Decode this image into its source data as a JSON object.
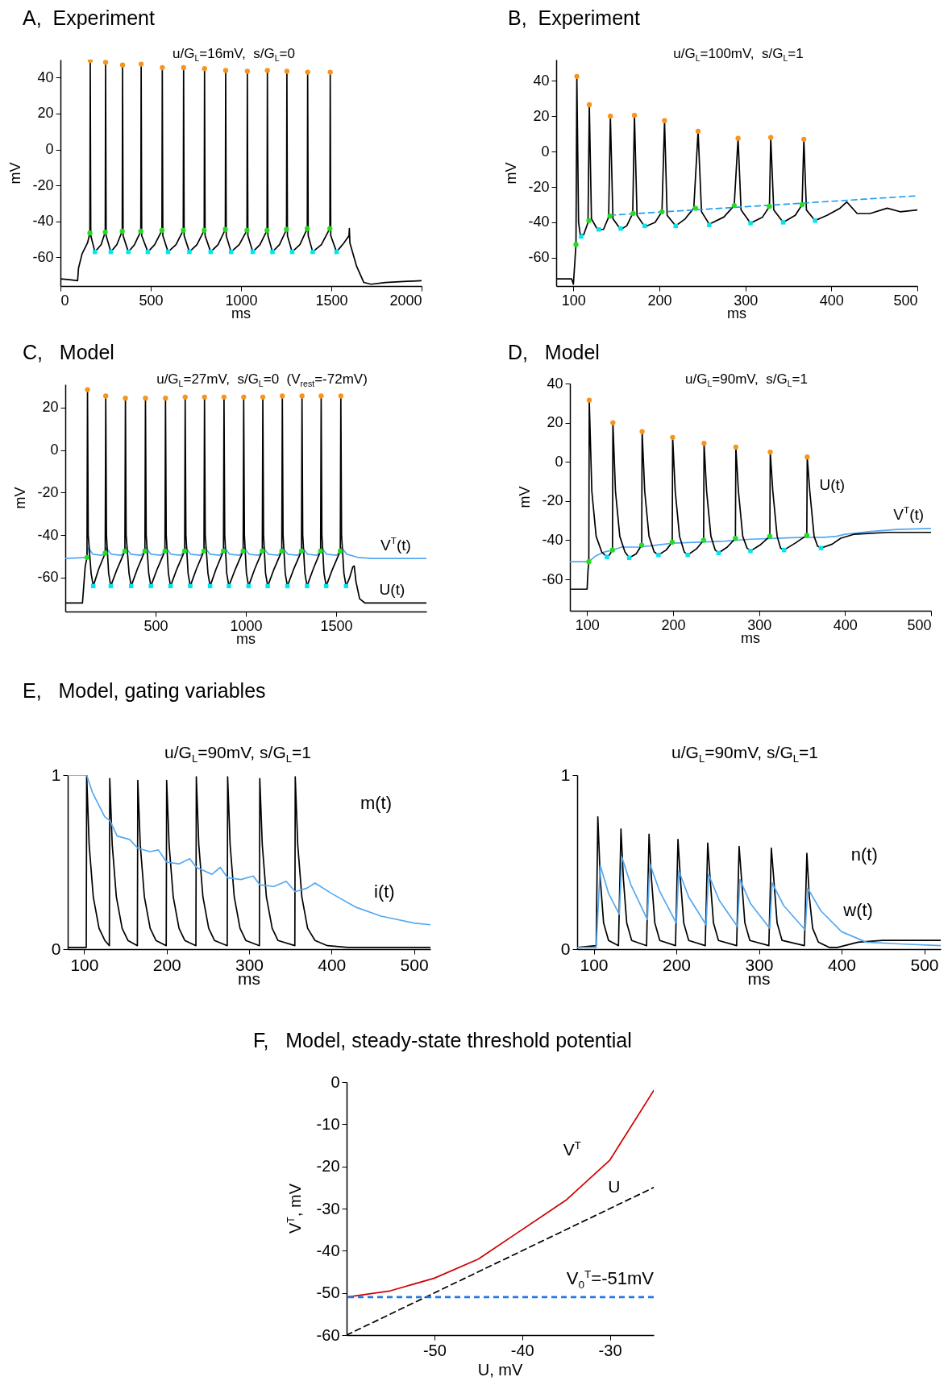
{
  "chart_data": [
    {
      "type": "line",
      "title": "A,  Experiment",
      "subtitle": "u/G$_{L}$=16mV,  s/G$_{L}$=0",
      "xlabel": "ms",
      "ylabel": "mV",
      "xlim": [
        0,
        2000
      ],
      "ylim": [
        -76,
        50
      ],
      "xticks": [
        0,
        500,
        1000,
        1500,
        2000
      ],
      "yticks": [
        -60,
        -40,
        -20,
        0,
        20,
        40
      ],
      "series": [
        {
          "type": "line",
          "color": "#000000",
          "x": [
            0,
            50,
            95,
            100,
            120,
            150,
            163,
            165,
            168,
            191,
            225,
            248,
            250,
            253,
            279,
            312,
            342,
            344,
            347,
            376,
            410,
            445,
            447,
            450,
            484,
            522,
            562,
            564,
            567,
            596,
            640,
            680,
            682,
            685,
            714,
            756,
            796,
            798,
            801,
            832,
            873,
            913,
            915,
            918,
            945,
            990,
            1033,
            1035,
            1038,
            1065,
            1105,
            1144,
            1146,
            1149,
            1174,
            1213,
            1252,
            1254,
            1257,
            1283,
            1326,
            1367,
            1369,
            1372,
            1397,
            1445,
            1492,
            1494,
            1497,
            1529,
            1570,
            1598,
            1600,
            1603,
            1640,
            1680,
            1720,
            1800,
            1900,
            2000
          ],
          "values": [
            -72,
            -72.5,
            -73,
            -66,
            -58,
            -52,
            -46.5,
            49.5,
            -48,
            -57,
            -53,
            -46,
            48.5,
            -48,
            -57,
            -53,
            -45.5,
            47,
            -48,
            -57,
            -53,
            -45.5,
            47.5,
            -48,
            -57,
            -53,
            -45,
            45.5,
            -48,
            -57,
            -53,
            -45,
            45.5,
            -48,
            -57,
            -53,
            -45,
            45,
            -48,
            -57,
            -53,
            -44.5,
            44,
            -48,
            -57,
            -53,
            -45,
            43.5,
            -48,
            -57,
            -53,
            -45,
            44,
            -48,
            -57,
            -53,
            -44.5,
            43.5,
            -48,
            -57,
            -53,
            -44,
            43,
            -48,
            -57,
            -53,
            -44,
            43,
            -48,
            -57,
            -52,
            -48,
            -44,
            -52,
            -65,
            -74,
            -75,
            -74,
            -73.5,
            -73
          ]
        },
        {
          "type": "scatter",
          "marker": "circle",
          "color": "#f7941d",
          "x": [
            165,
            250,
            344,
            447,
            564,
            682,
            798,
            915,
            1035,
            1146,
            1254,
            1369,
            1494
          ],
          "values": [
            49.5,
            48.5,
            47,
            47.5,
            45.5,
            45.5,
            45,
            44,
            43.5,
            44,
            43.5,
            43,
            43
          ]
        },
        {
          "type": "scatter",
          "marker": "circle",
          "color": "#22dd22",
          "x": [
            163,
            248,
            342,
            445,
            562,
            680,
            796,
            913,
            1033,
            1144,
            1252,
            1367,
            1492
          ],
          "values": [
            -46.5,
            -46,
            -45.5,
            -45.5,
            -45,
            -45,
            -45,
            -44.5,
            -45,
            -45,
            -44.5,
            -44,
            -44
          ]
        },
        {
          "type": "scatter",
          "marker": "square",
          "color": "#00e5ee",
          "x": [
            191,
            279,
            376,
            484,
            596,
            714,
            832,
            945,
            1065,
            1174,
            1283,
            1397,
            1529
          ],
          "values": [
            -57,
            -57,
            -57,
            -57,
            -57,
            -57,
            -57,
            -57,
            -57,
            -57,
            -57,
            -57,
            -57
          ]
        }
      ]
    },
    {
      "type": "line",
      "title": "B,  Experiment",
      "subtitle": "u/G$_{L}$=100mV,  s/G$_{L}$=1",
      "xlabel": "ms",
      "ylabel": "mV",
      "xlim": [
        80,
        500
      ],
      "ylim": [
        -76,
        52
      ],
      "xticks": [
        100,
        200,
        300,
        400,
        500
      ],
      "yticks": [
        -60,
        -40,
        -20,
        0,
        20,
        40
      ],
      "series": [
        {
          "type": "line",
          "color": "#000000",
          "x": [
            80,
            98,
            100,
            102,
            103,
            104,
            106,
            108,
            112,
            117,
            118.5,
            121,
            128,
            135,
            141,
            143,
            146,
            155,
            162,
            169,
            171,
            174,
            183,
            195,
            203,
            206,
            209,
            219,
            230,
            240,
            245,
            249,
            258,
            275,
            287,
            291.5,
            295,
            306,
            320,
            328,
            329.5,
            333,
            344,
            358,
            366,
            368,
            371,
            381,
            395,
            410,
            418,
            430,
            445,
            465,
            480,
            500
          ],
          "values": [
            -72,
            -72,
            -75,
            -60,
            -52.5,
            42.5,
            -40,
            -47,
            -47,
            -40,
            26.5,
            -38,
            -44,
            -44,
            -37,
            20,
            -38,
            -44,
            -42,
            -35,
            20.5,
            -36,
            -42.5,
            -40,
            -34,
            17.5,
            -36,
            -42,
            -38,
            -32,
            11.5,
            -34,
            -41,
            -37,
            -30.5,
            7.5,
            -33,
            -40.5,
            -37,
            -31,
            8,
            -33,
            -40,
            -36,
            -30,
            7,
            -33,
            -39,
            -36,
            -32,
            -28.5,
            -35,
            -35,
            -32,
            -34,
            -33
          ]
        },
        {
          "type": "line",
          "line_style": "dashed",
          "color": "#1fa0f0",
          "x": [
            142.5,
            500
          ],
          "values": [
            -36,
            -25
          ]
        },
        {
          "type": "scatter",
          "marker": "circle",
          "color": "#f7941d",
          "x": [
            104,
            118.5,
            143,
            171,
            206,
            245,
            291.5,
            329.5,
            368
          ],
          "values": [
            42.5,
            26.5,
            20,
            20.5,
            17.5,
            11.5,
            7.5,
            8,
            7
          ]
        },
        {
          "type": "scatter",
          "marker": "circle",
          "color": "#22dd22",
          "x": [
            103,
            118,
            142.5,
            169.5,
            203,
            242,
            287,
            328,
            366
          ],
          "values": [
            -52.5,
            -39,
            -36.5,
            -35,
            -34,
            -32,
            -30.5,
            -31,
            -30
          ]
        },
        {
          "type": "scatter",
          "marker": "square",
          "color": "#00e5ee",
          "x": [
            109,
            129.5,
            155,
            183,
            219,
            258,
            306,
            344,
            381
          ],
          "values": [
            -48,
            -44,
            -43.5,
            -42,
            -42,
            -41.5,
            -40.5,
            -40,
            -39
          ]
        }
      ]
    },
    {
      "type": "line",
      "title": "C,   Model",
      "subtitle": "u/G$_{L}$=27mV,  s/G$_{L}$=0  (V$_{rest}$=-72mV)",
      "xlabel": "ms",
      "ylabel": "mV",
      "xlim": [
        0,
        2000
      ],
      "ylim": [
        -76,
        31
      ],
      "xticks": [
        500,
        1000,
        1500
      ],
      "yticks": [
        -60,
        -40,
        -20,
        0,
        20
      ],
      "annotations": [
        "V$^{T}$(t)",
        "U(t)"
      ],
      "series": [
        {
          "type": "line",
          "color": "#55a8f0",
          "x": [
            0,
            120,
            126,
            153,
            200,
            221,
            227,
            254,
            310,
            330,
            336,
            363,
            420,
            441,
            447,
            474,
            530,
            552,
            558,
            585,
            640,
            661,
            667,
            694,
            748,
            768,
            774,
            801,
            856,
            876,
            882,
            909,
            965,
            985,
            991,
            1018,
            1071,
            1091,
            1097,
            1124,
            1179,
            1199,
            1205,
            1232,
            1288,
            1308,
            1314,
            1341,
            1394,
            1414,
            1420,
            1447,
            1503,
            1523,
            1529,
            1560,
            1620,
            1700,
            2000
          ],
          "values": [
            -51,
            -50.5,
            -46,
            -49,
            -49.5,
            -48.5,
            -46,
            -49,
            -49.5,
            -47.5,
            -46,
            -49,
            -49.5,
            -47.5,
            -46,
            -49,
            -49.5,
            -47.5,
            -46,
            -49,
            -49.5,
            -47.5,
            -46,
            -49,
            -49.5,
            -47.5,
            -46,
            -49,
            -49.5,
            -47.5,
            -46,
            -49,
            -49.5,
            -47.5,
            -46,
            -49,
            -49.5,
            -47.5,
            -46,
            -49,
            -49.5,
            -47.5,
            -46,
            -49,
            -49.5,
            -47.5,
            -46,
            -49,
            -49.5,
            -47.5,
            -46,
            -49,
            -49.5,
            -47.5,
            -46,
            -49,
            -50.5,
            -51,
            -51
          ]
        },
        {
          "type": "line",
          "color": "#000000",
          "x": [
            0,
            95,
            110,
            120,
            123,
            127,
            143,
            155,
            185,
            221,
            224,
            228,
            240,
            252,
            287,
            330,
            333,
            337,
            353,
            365,
            399,
            441,
            444,
            448,
            462,
            474,
            509,
            552,
            555,
            559,
            571,
            583,
            618,
            661,
            664,
            668,
            680,
            692,
            726,
            768,
            771,
            775,
            790,
            802,
            835,
            876,
            879,
            883,
            894,
            906,
            942,
            985,
            988,
            992,
            1003,
            1015,
            1049,
            1091,
            1094,
            1098,
            1109,
            1121,
            1156,
            1199,
            1202,
            1206,
            1218,
            1230,
            1265,
            1308,
            1311,
            1315,
            1327,
            1339,
            1373,
            1414,
            1417,
            1421,
            1433,
            1445,
            1480,
            1523,
            1526,
            1530,
            1543,
            1555,
            1575,
            1592,
            1600,
            1610,
            1630,
            1660,
            2000
          ],
          "values": [
            -72,
            -72,
            -55,
            -50.5,
            28.5,
            -40,
            -58,
            -64,
            -56,
            -48.5,
            25.5,
            -40,
            -58,
            -64,
            -56,
            -47.5,
            24.5,
            -40,
            -58,
            -64,
            -56,
            -47.5,
            24.5,
            -40,
            -58,
            -64,
            -56,
            -47.5,
            24.5,
            -40,
            -58,
            -64,
            -56,
            -47.5,
            25,
            -40,
            -58,
            -64,
            -56,
            -47.5,
            25,
            -40,
            -58,
            -64,
            -56,
            -47.5,
            25,
            -40,
            -58,
            -64,
            -56,
            -47.5,
            25,
            -40,
            -58,
            -64,
            -56,
            -47.5,
            25,
            -40,
            -58,
            -64,
            -56,
            -47.5,
            25.5,
            -40,
            -58,
            -64,
            -56,
            -47.5,
            25.5,
            -40,
            -58,
            -64,
            -56,
            -47.5,
            25.5,
            -40,
            -58,
            -64,
            -56,
            -47.5,
            25.5,
            -40,
            -58,
            -64,
            -60,
            -55,
            -54.5,
            -62,
            -70,
            -72,
            -72
          ]
        },
        {
          "type": "scatter",
          "marker": "circle",
          "color": "#f7941d",
          "x": [
            123,
            224,
            333,
            444,
            555,
            664,
            771,
            879,
            988,
            1094,
            1202,
            1311,
            1417,
            1526
          ],
          "values": [
            28.5,
            25.5,
            24.5,
            24.5,
            24.5,
            25,
            25,
            25,
            25,
            25,
            25.5,
            25.5,
            25.5,
            25.5
          ]
        },
        {
          "type": "scatter",
          "marker": "circle",
          "color": "#22dd22",
          "x": [
            120,
            221,
            330,
            441,
            552,
            661,
            768,
            876,
            985,
            1091,
            1199,
            1308,
            1414,
            1523
          ],
          "values": [
            -50.5,
            -48.5,
            -47.5,
            -47.5,
            -47.5,
            -47.5,
            -47.5,
            -47.5,
            -47.5,
            -47.5,
            -47.5,
            -47.5,
            -47.5,
            -47.5
          ]
        },
        {
          "type": "scatter",
          "marker": "square",
          "color": "#00e5ee",
          "x": [
            155,
            252,
            365,
            474,
            583,
            692,
            802,
            906,
            1015,
            1121,
            1230,
            1339,
            1445,
            1555
          ],
          "values": [
            -64,
            -64,
            -64,
            -64,
            -64,
            -64,
            -64,
            -64,
            -64,
            -64,
            -64,
            -64,
            -64,
            -64
          ]
        }
      ]
    },
    {
      "type": "line",
      "title": "D,   Model",
      "subtitle": "u/G$_{L}$=90mV,  s/G$_{L}$=1",
      "xlabel": "ms",
      "ylabel": "mV",
      "xlim": [
        80,
        500
      ],
      "ylim": [
        -76,
        40
      ],
      "xticks": [
        100,
        200,
        300,
        400,
        500
      ],
      "yticks": [
        -60,
        -40,
        -20,
        0,
        20,
        40
      ],
      "annotations": [
        "U(t)",
        "V$^{T}$(t)"
      ],
      "series": [
        {
          "type": "line",
          "color": "#55a8f0",
          "x": [
            80,
            102,
            110,
            120,
            130,
            140,
            160,
            180,
            200,
            230,
            260,
            290,
            320,
            350,
            375,
            390,
            400,
            430,
            460,
            500
          ],
          "values": [
            -51,
            -51,
            -48,
            -46,
            -45,
            -43.5,
            -43.5,
            -42.5,
            -41.5,
            -41,
            -40.5,
            -39.5,
            -39,
            -38.5,
            -38.5,
            -38,
            -37,
            -35.5,
            -34.5,
            -34
          ]
        },
        {
          "type": "line",
          "color": "#000000",
          "x": [
            80,
            100,
            101,
            102,
            102.5,
            105.5,
            110.5,
            117,
            123,
            126,
            129.5,
            130,
            133,
            138,
            144,
            149,
            157,
            163.5,
            164,
            167,
            172,
            178,
            183,
            192,
            199,
            199.5,
            202.5,
            207.5,
            213,
            217,
            227,
            235.5,
            236,
            239,
            244,
            249,
            253,
            263,
            272.5,
            273,
            276,
            281,
            286,
            290,
            301,
            312.5,
            313,
            316,
            321,
            325,
            329,
            342,
            355.5,
            356,
            359,
            364,
            368,
            372,
            385,
            395,
            410,
            450,
            500
          ],
          "values": [
            -65,
            -65,
            -56,
            -51,
            31.5,
            -15,
            -38,
            -46,
            -48.5,
            -47.5,
            -45,
            20,
            -15,
            -38,
            -46,
            -49,
            -47,
            -42.5,
            15.5,
            -15,
            -38,
            -46,
            -47.5,
            -45,
            -41,
            12.5,
            -15,
            -38,
            -46,
            -47.5,
            -44.5,
            -40,
            9.5,
            -15,
            -38,
            -45,
            -46.5,
            -43.5,
            -39,
            7.5,
            -15,
            -38,
            -44,
            -45.5,
            -42.5,
            -38,
            5,
            -15,
            -38,
            -44,
            -45,
            -41.5,
            -37.5,
            2.5,
            -15,
            -38,
            -43,
            -44,
            -42,
            -39,
            -37,
            -36,
            -36
          ]
        },
        {
          "type": "scatter",
          "marker": "circle",
          "color": "#f7941d",
          "x": [
            102.5,
            130,
            164,
            199.5,
            236,
            273,
            313,
            356
          ],
          "values": [
            31.5,
            20,
            15.5,
            12.5,
            9.5,
            7.5,
            5,
            2.5
          ]
        },
        {
          "type": "scatter",
          "marker": "circle",
          "color": "#22dd22",
          "x": [
            102,
            129.5,
            163.5,
            199,
            235.5,
            272.5,
            312.5,
            355.5
          ],
          "values": [
            -51,
            -45,
            -42.5,
            -41,
            -40,
            -39,
            -38,
            -37.5
          ]
        },
        {
          "type": "scatter",
          "marker": "square",
          "color": "#00e5ee",
          "x": [
            123,
            149,
            183,
            217,
            253,
            290,
            329,
            372
          ],
          "values": [
            -48.5,
            -49,
            -47.5,
            -47.5,
            -46.5,
            -45.5,
            -45,
            -44
          ]
        }
      ]
    },
    {
      "type": "line",
      "title": "E,   Model, gating variables",
      "subtitle": "u/G$_{L}$=90mV, s/G$_{L}$=1",
      "xlabel": "ms",
      "xlim": [
        80,
        520
      ],
      "ylim": [
        0,
        1
      ],
      "xticks": [
        100,
        200,
        300,
        400,
        500
      ],
      "yticks": [
        0,
        1
      ],
      "annotations": [
        "m(t)",
        "i(t)"
      ],
      "series": [
        {
          "type": "line",
          "color": "#000000",
          "x": [
            80,
            102.5,
            103,
            106,
            111,
            118,
            125,
            130.5,
            131,
            134,
            139,
            146,
            153,
            164.5,
            165,
            168,
            173,
            180,
            187,
            199.5,
            200,
            203,
            208,
            215,
            222,
            235.5,
            236,
            239,
            244,
            251,
            258,
            273.5,
            274,
            277,
            282,
            289,
            296,
            312.5,
            313,
            316,
            321,
            328,
            335,
            355.5,
            356,
            359,
            364,
            371,
            380,
            395,
            420,
            520
          ],
          "values": [
            0.01,
            0.01,
            1,
            0.6,
            0.3,
            0.12,
            0.05,
            0.02,
            0.98,
            0.6,
            0.3,
            0.12,
            0.05,
            0.02,
            0.97,
            0.6,
            0.3,
            0.12,
            0.05,
            0.02,
            0.97,
            0.6,
            0.3,
            0.12,
            0.05,
            0.02,
            0.99,
            0.6,
            0.3,
            0.12,
            0.05,
            0.02,
            0.99,
            0.6,
            0.3,
            0.12,
            0.05,
            0.02,
            0.98,
            0.6,
            0.3,
            0.12,
            0.05,
            0.02,
            0.99,
            0.6,
            0.3,
            0.12,
            0.05,
            0.02,
            0.01,
            0.01
          ]
        },
        {
          "type": "line",
          "color": "#55a8f0",
          "x": [
            80,
            103,
            110,
            125,
            131,
            140,
            155,
            165,
            180,
            190,
            200,
            215,
            228,
            236,
            255,
            265,
            274,
            290,
            305,
            313,
            330,
            345,
            356,
            370,
            380,
            400,
            430,
            460,
            500,
            520
          ],
          "values": [
            1,
            1,
            0.9,
            0.76,
            0.74,
            0.65,
            0.63,
            0.58,
            0.56,
            0.57,
            0.5,
            0.49,
            0.52,
            0.47,
            0.43,
            0.47,
            0.41,
            0.4,
            0.42,
            0.37,
            0.36,
            0.39,
            0.33,
            0.35,
            0.38,
            0.32,
            0.24,
            0.19,
            0.15,
            0.14
          ]
        }
      ]
    },
    {
      "type": "line",
      "subtitle": "u/G$_{L}$=90mV, s/G$_{L}$=1",
      "xlabel": "ms",
      "xlim": [
        80,
        520
      ],
      "ylim": [
        0,
        1
      ],
      "xticks": [
        100,
        200,
        300,
        400,
        500
      ],
      "yticks": [
        0,
        1
      ],
      "annotations": [
        "n(t)",
        "w(t)"
      ],
      "series": [
        {
          "type": "line",
          "color": "#000000",
          "x": [
            80,
            103,
            105,
            108,
            112,
            118,
            130,
            133,
            136,
            140,
            146,
            164,
            167,
            170,
            174,
            180,
            199,
            202,
            205,
            209,
            215,
            235,
            238,
            241,
            245,
            251,
            273,
            276,
            279,
            283,
            289,
            312,
            315,
            318,
            322,
            328,
            355,
            358,
            361,
            365,
            372,
            385,
            395,
            420,
            450,
            520
          ],
          "values": [
            0.01,
            0.02,
            0.76,
            0.4,
            0.15,
            0.05,
            0.02,
            0.69,
            0.4,
            0.15,
            0.05,
            0.02,
            0.66,
            0.4,
            0.15,
            0.05,
            0.02,
            0.63,
            0.4,
            0.15,
            0.05,
            0.02,
            0.61,
            0.4,
            0.15,
            0.05,
            0.02,
            0.59,
            0.4,
            0.15,
            0.05,
            0.02,
            0.58,
            0.4,
            0.15,
            0.05,
            0.02,
            0.55,
            0.3,
            0.12,
            0.04,
            0.01,
            0.01,
            0.04,
            0.05,
            0.05
          ]
        },
        {
          "type": "line",
          "color": "#55a8f0",
          "x": [
            80,
            103,
            108,
            118,
            131,
            134,
            145,
            165,
            168,
            180,
            200,
            203,
            215,
            236,
            239,
            252,
            274,
            277,
            290,
            313,
            316,
            330,
            356,
            359,
            375,
            400,
            430,
            470,
            520
          ],
          "values": [
            0.01,
            0.01,
            0.48,
            0.32,
            0.2,
            0.53,
            0.37,
            0.17,
            0.49,
            0.33,
            0.15,
            0.45,
            0.3,
            0.14,
            0.43,
            0.28,
            0.13,
            0.4,
            0.26,
            0.12,
            0.38,
            0.25,
            0.11,
            0.35,
            0.22,
            0.1,
            0.04,
            0.03,
            0.02
          ]
        }
      ]
    },
    {
      "type": "line",
      "title": "F,   Model, steady-state threshold potential",
      "xlabel": "U, mV",
      "ylabel": "V$^{T}$, mV",
      "xlim": [
        -60,
        -25
      ],
      "ylim": [
        -60,
        0
      ],
      "xticks": [
        -50,
        -40,
        -30
      ],
      "yticks": [
        -60,
        -50,
        -40,
        -30,
        -20,
        -10,
        0
      ],
      "annotations": [
        "V$^{T}$",
        "U"
      ],
      "ref_lines": [
        {
          "axis": "y",
          "value": -51,
          "label": "V$_{0}$$^{T}$=-51mV",
          "color": "#1f78e8",
          "line_style": "dashed"
        }
      ],
      "series": [
        {
          "type": "line",
          "color": "#d00000",
          "x": [
            -60,
            -55,
            -50,
            -45,
            -40,
            -35,
            -30,
            -25
          ],
          "values": [
            -51,
            -49.5,
            -46.5,
            -42,
            -35,
            -28,
            -18.5,
            -2
          ]
        },
        {
          "type": "line",
          "line_style": "dashed",
          "color": "#000000",
          "x": [
            -60,
            -25
          ],
          "values": [
            -60,
            -25
          ]
        }
      ]
    }
  ]
}
